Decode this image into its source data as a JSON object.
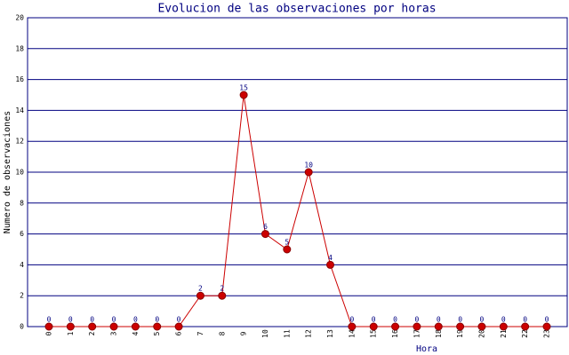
{
  "chart_data": {
    "type": "line",
    "title": "Evolucion de las observaciones por horas",
    "x_label": "Hora",
    "y_label": "Numero de observaciones",
    "categories": [
      "0",
      "1",
      "2",
      "3",
      "4",
      "5",
      "6",
      "7",
      "8",
      "9",
      "10",
      "11",
      "12",
      "13",
      "14",
      "15",
      "16",
      "17",
      "18",
      "19",
      "20",
      "21",
      "22",
      "23"
    ],
    "values": [
      0,
      0,
      0,
      0,
      0,
      0,
      0,
      2,
      2,
      15,
      6,
      5,
      10,
      4,
      0,
      0,
      0,
      0,
      0,
      0,
      0,
      0,
      0,
      0
    ],
    "color": "#cc0000",
    "ylim": [
      0,
      20
    ],
    "yticks": [
      0,
      2,
      4,
      6,
      8,
      10,
      12,
      14,
      16,
      18,
      20
    ],
    "grid": true
  }
}
